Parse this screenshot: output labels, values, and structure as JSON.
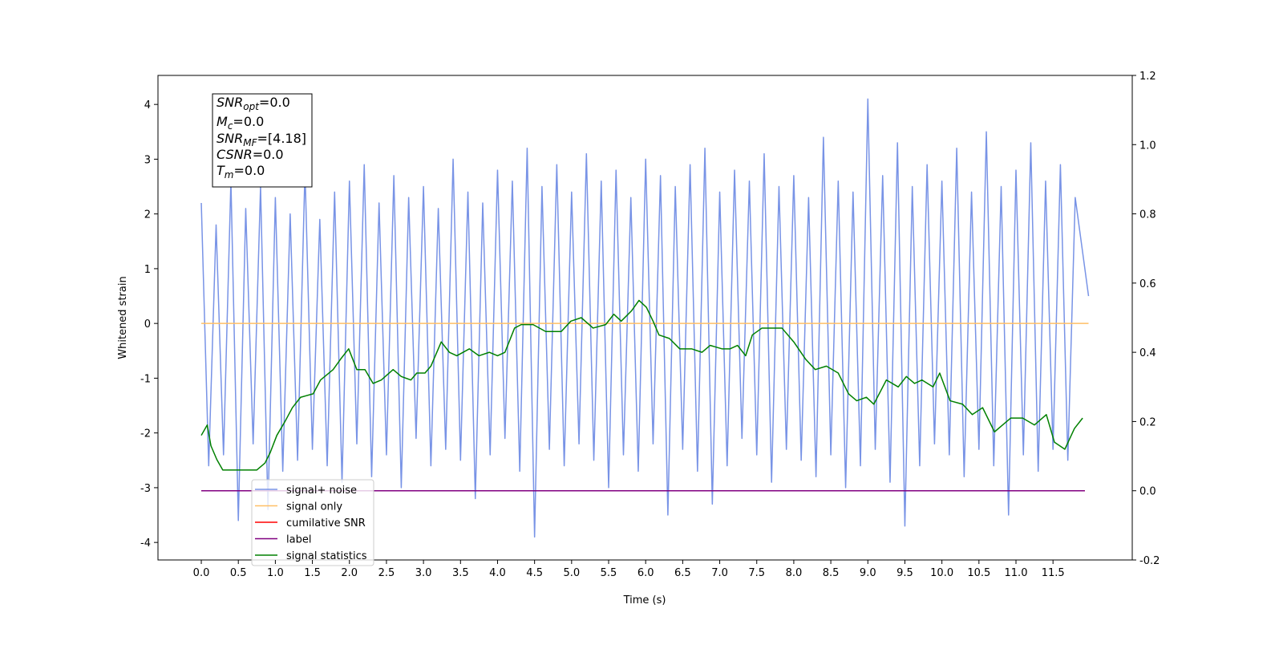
{
  "chart_data": {
    "type": "line",
    "xlabel": "Time (s)",
    "ylabel": "Whitened strain",
    "xlim": [
      -0.585,
      12.57
    ],
    "ylim": [
      -4.32,
      4.53
    ],
    "y2lim": [
      -0.2,
      1.2
    ],
    "xticks": [
      {
        "value": 0,
        "label": "0.0"
      },
      0.5,
      {
        "value": 1,
        "label": "1.0"
      },
      1.5,
      {
        "value": 2,
        "label": "2.0"
      },
      2.5,
      {
        "value": 3,
        "label": "3.0"
      },
      3.5,
      {
        "value": 4,
        "label": "4.0"
      },
      4.5,
      {
        "value": 5,
        "label": "5.0"
      },
      5.5,
      {
        "value": 6,
        "label": "6.0"
      },
      6.5,
      {
        "value": 7,
        "label": "7.0"
      },
      7.5,
      {
        "value": 8,
        "label": "8.0"
      },
      8.5,
      {
        "value": 9,
        "label": "9.0"
      },
      9.5,
      {
        "value": 10,
        "label": "10.0"
      },
      10.5,
      {
        "value": 11,
        "label": "11.0"
      },
      11.5
    ],
    "yticks": [
      -4,
      -3,
      -2,
      -1,
      0,
      1,
      2,
      3,
      4
    ],
    "y2ticks": [
      -0.2,
      {
        "value": 0,
        "label": "0.0"
      },
      0.2,
      0.4,
      0.6,
      0.8,
      {
        "value": 1,
        "label": "1.0"
      },
      1.2
    ],
    "legend": "lower left",
    "annotation": [
      [
        "SNR",
        "opt",
        "=0.0"
      ],
      [
        "M",
        "c",
        "=0.0"
      ],
      [
        "SNR",
        "MF",
        "=[4.18]"
      ],
      [
        "CSNR",
        "=0.0"
      ],
      [
        "T",
        "m",
        "=0.0"
      ]
    ],
    "series": [
      {
        "name": "signal+ noise",
        "color": "#7893e6",
        "x": [
          0,
          0.1,
          0.2,
          0.3,
          0.4,
          0.5,
          0.6,
          0.7,
          0.8,
          0.9,
          1,
          1.1,
          1.2,
          1.3,
          1.4,
          1.5,
          1.6,
          1.7,
          1.8,
          1.9,
          2,
          2.1,
          2.2,
          2.3,
          2.4,
          2.5,
          2.6,
          2.7,
          2.8,
          2.9,
          3,
          3.1,
          3.2,
          3.3,
          3.4,
          3.5,
          3.6,
          3.7,
          3.8,
          3.9,
          4,
          4.1,
          4.2,
          4.3,
          4.4,
          4.5,
          4.6,
          4.7,
          4.8,
          4.9,
          5,
          5.1,
          5.2,
          5.3,
          5.4,
          5.5,
          5.6,
          5.7,
          5.8,
          5.9,
          6,
          6.1,
          6.2,
          6.3,
          6.4,
          6.5,
          6.6,
          6.7,
          6.8,
          6.9,
          7,
          7.1,
          7.2,
          7.3,
          7.4,
          7.5,
          7.6,
          7.7,
          7.8,
          7.9,
          8,
          8.1,
          8.2,
          8.3,
          8.4,
          8.5,
          8.6,
          8.7,
          8.8,
          8.9,
          9,
          9.1,
          9.2,
          9.3,
          9.4,
          9.5,
          9.6,
          9.7,
          9.8,
          9.9,
          10,
          10.1,
          10.2,
          10.3,
          10.4,
          10.5,
          10.6,
          10.7,
          10.8,
          10.9,
          11,
          11.1,
          11.2,
          11.3,
          11.4,
          11.5,
          11.6,
          11.7,
          11.8,
          11.98
        ],
        "values": [
          2.2,
          -2.6,
          1.8,
          -2.4,
          2.6,
          -3.6,
          2.1,
          -2.2,
          2.5,
          -3.4,
          2.3,
          -2.7,
          2.0,
          -2.5,
          2.8,
          -2.3,
          1.9,
          -2.6,
          2.4,
          -2.9,
          2.6,
          -2.2,
          2.9,
          -2.8,
          2.2,
          -2.4,
          2.7,
          -3.0,
          2.3,
          -2.1,
          2.5,
          -2.6,
          2.1,
          -2.3,
          3.0,
          -2.5,
          2.4,
          -3.2,
          2.2,
          -2.4,
          2.8,
          -2.1,
          2.6,
          -2.7,
          3.2,
          -3.9,
          2.5,
          -2.3,
          2.9,
          -2.6,
          2.4,
          -2.2,
          3.1,
          -2.5,
          2.6,
          -3.0,
          2.8,
          -2.4,
          2.3,
          -2.7,
          3.0,
          -2.2,
          2.7,
          -3.5,
          2.5,
          -2.3,
          2.9,
          -2.7,
          3.2,
          -3.3,
          2.4,
          -2.6,
          2.8,
          -2.1,
          2.6,
          -2.4,
          3.1,
          -2.9,
          2.5,
          -2.3,
          2.7,
          -2.5,
          2.3,
          -2.8,
          3.4,
          -2.4,
          2.6,
          -3.0,
          2.4,
          -2.6,
          4.1,
          -2.3,
          2.7,
          -2.9,
          3.3,
          -3.7,
          2.5,
          -2.6,
          2.9,
          -2.2,
          2.6,
          -2.4,
          3.2,
          -2.8,
          2.4,
          -2.3,
          3.5,
          -2.6,
          2.5,
          -3.5,
          2.8,
          -2.4,
          3.3,
          -2.7,
          2.6,
          -2.3,
          2.9,
          -2.5,
          2.3,
          0.5
        ]
      },
      {
        "name": "signal only",
        "color": "#ffbf66",
        "x": [
          0,
          11.98
        ],
        "values": [
          0,
          0
        ]
      },
      {
        "name": "cumilative SNR",
        "color": "#ff0000",
        "axis": "y2",
        "x": [
          0,
          11.93
        ],
        "values": [
          0,
          0
        ]
      },
      {
        "name": "label",
        "color": "#800080",
        "axis": "y2",
        "x": [
          0,
          11.93
        ],
        "values": [
          0,
          0
        ]
      },
      {
        "name": "signal statistics",
        "color": "#008000",
        "axis": "y2",
        "x": [
          0,
          0.08,
          0.13,
          0.21,
          0.29,
          0.42,
          0.51,
          0.58,
          0.75,
          0.86,
          0.93,
          1.02,
          1.13,
          1.23,
          1.34,
          1.51,
          1.61,
          1.78,
          1.88,
          1.99,
          2.1,
          2.21,
          2.32,
          2.43,
          2.59,
          2.7,
          2.83,
          2.91,
          3.02,
          3.1,
          3.24,
          3.35,
          3.45,
          3.62,
          3.75,
          3.89,
          4.0,
          4.1,
          4.23,
          4.32,
          4.48,
          4.65,
          4.86,
          4.99,
          5.13,
          5.29,
          5.46,
          5.57,
          5.67,
          5.81,
          5.91,
          6.01,
          6.1,
          6.18,
          6.32,
          6.46,
          6.62,
          6.76,
          6.87,
          7.03,
          7.14,
          7.24,
          7.35,
          7.44,
          7.57,
          7.68,
          7.84,
          8.0,
          8.16,
          8.29,
          8.44,
          8.6,
          8.74,
          8.85,
          8.98,
          9.08,
          9.25,
          9.41,
          9.52,
          9.63,
          9.73,
          9.88,
          9.97,
          10.11,
          10.28,
          10.41,
          10.55,
          10.71,
          10.82,
          10.93,
          11.09,
          11.25,
          11.41,
          11.52,
          11.66,
          11.79,
          11.9
        ],
        "values": [
          0.16,
          0.19,
          0.13,
          0.09,
          0.06,
          0.06,
          0.06,
          0.06,
          0.06,
          0.08,
          0.11,
          0.16,
          0.2,
          0.24,
          0.27,
          0.28,
          0.32,
          0.35,
          0.38,
          0.41,
          0.35,
          0.35,
          0.31,
          0.32,
          0.35,
          0.33,
          0.32,
          0.34,
          0.34,
          0.36,
          0.43,
          0.4,
          0.39,
          0.41,
          0.39,
          0.4,
          0.39,
          0.4,
          0.47,
          0.48,
          0.48,
          0.46,
          0.46,
          0.49,
          0.5,
          0.47,
          0.48,
          0.51,
          0.49,
          0.52,
          0.55,
          0.53,
          0.49,
          0.45,
          0.44,
          0.41,
          0.41,
          0.4,
          0.42,
          0.41,
          0.41,
          0.42,
          0.39,
          0.45,
          0.47,
          0.47,
          0.47,
          0.43,
          0.38,
          0.35,
          0.36,
          0.34,
          0.28,
          0.26,
          0.27,
          0.25,
          0.32,
          0.3,
          0.33,
          0.31,
          0.32,
          0.3,
          0.34,
          0.26,
          0.25,
          0.22,
          0.24,
          0.17,
          0.19,
          0.21,
          0.21,
          0.19,
          0.22,
          0.14,
          0.12,
          0.18,
          0.21
        ]
      }
    ]
  }
}
